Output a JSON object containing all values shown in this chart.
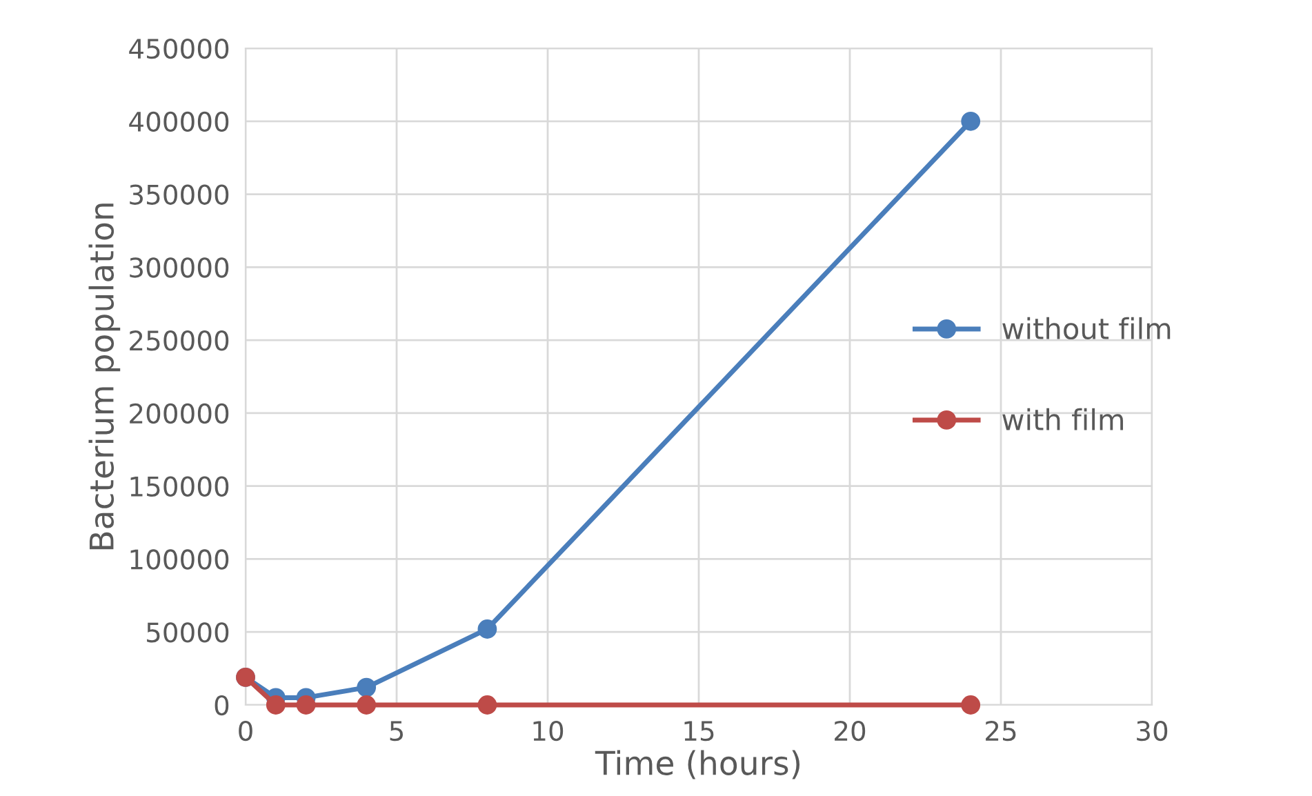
{
  "chart_data": {
    "type": "line",
    "xlabel": "Time (hours)",
    "ylabel": "Bacterium population",
    "series": [
      {
        "name": "without film",
        "color": "#4a7ebb",
        "x": [
          0,
          1,
          2,
          4,
          8,
          24
        ],
        "values": [
          19000,
          5000,
          5000,
          12000,
          52000,
          400000
        ]
      },
      {
        "name": "with film",
        "color": "#be4b48",
        "x": [
          0,
          1,
          2,
          4,
          8,
          24
        ],
        "values": [
          19000,
          0,
          0,
          0,
          0,
          0
        ]
      }
    ],
    "xlim": [
      0,
      30
    ],
    "xticks": [
      0,
      5,
      10,
      15,
      20,
      25,
      30
    ],
    "ylim": [
      0,
      450000
    ],
    "yticks": [
      0,
      50000,
      100000,
      150000,
      200000,
      250000,
      300000,
      350000,
      400000,
      450000
    ],
    "grid": true,
    "legend": "right",
    "marker": "circle",
    "line_style": "solid"
  }
}
